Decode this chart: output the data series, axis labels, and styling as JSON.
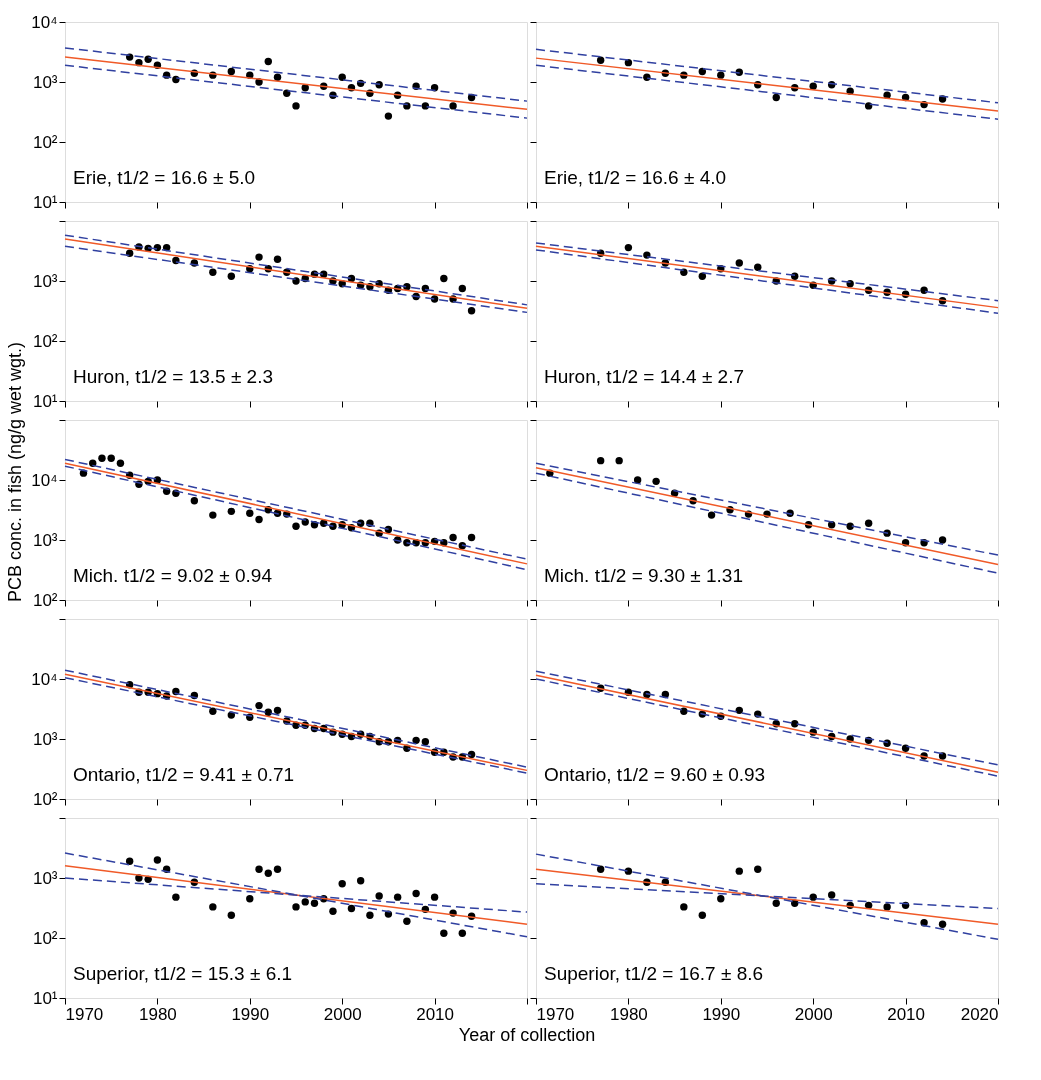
{
  "chart_data": [
    {
      "type": "scatter",
      "log": "y",
      "grid": false,
      "tick_labels": "y",
      "xlim": [
        1970,
        2020
      ],
      "ylim": [
        10,
        10000
      ],
      "xticks": [
        1970,
        1980,
        1990,
        2000,
        2010,
        2020
      ],
      "yticks": [
        {
          "value": 10,
          "label": "10¹"
        },
        {
          "value": 100,
          "label": "10²"
        },
        {
          "value": 1000,
          "label": "10³"
        },
        {
          "value": 10000,
          "label": "10⁴"
        }
      ],
      "annotations": [
        "Erie, t1/2 = 16.6 ± 5.0"
      ],
      "series": [
        {
          "type": "scatter",
          "marker": "circle",
          "color": "#000000",
          "x": [
            1977,
            1978,
            1979,
            1980,
            1981,
            1982,
            1984,
            1986,
            1988,
            1990,
            1991,
            1992,
            1993,
            1994,
            1995,
            1996,
            1998,
            1999,
            2000,
            2001,
            2002,
            2003,
            2004,
            2005,
            2006,
            2007,
            2008,
            2009,
            2010,
            2012,
            2014
          ],
          "values": [
            2600,
            2100,
            2400,
            1900,
            1300,
            1100,
            1400,
            1300,
            1500,
            1300,
            1000,
            2200,
            1200,
            650,
            400,
            800,
            850,
            600,
            1200,
            800,
            950,
            650,
            900,
            270,
            600,
            400,
            850,
            400,
            800,
            400,
            550
          ]
        },
        {
          "type": "line",
          "color": "#f05a28",
          "line_style": "solid",
          "x": [
            1970,
            2020
          ],
          "values": [
            2600,
            350
          ]
        },
        {
          "type": "line",
          "color": "#3040a0",
          "line_style": "dashed",
          "x": [
            1970,
            2020
          ],
          "values": [
            3700,
            480
          ]
        },
        {
          "type": "line",
          "color": "#3040a0",
          "line_style": "dashed",
          "x": [
            1970,
            2020
          ],
          "values": [
            1900,
            250
          ]
        }
      ]
    },
    {
      "type": "scatter",
      "log": "y",
      "grid": false,
      "tick_labels": false,
      "xlim": [
        1970,
        2020
      ],
      "ylim": [
        10,
        10000
      ],
      "xticks": [
        1970,
        1980,
        1990,
        2000,
        2010,
        2020
      ],
      "yticks": [
        10,
        100,
        1000,
        10000
      ],
      "annotations": [
        "Erie, t1/2 = 16.6 ± 4.0"
      ],
      "series": [
        {
          "type": "scatter",
          "marker": "circle",
          "color": "#000000",
          "x": [
            1977,
            1980,
            1982,
            1984,
            1986,
            1988,
            1990,
            1992,
            1994,
            1996,
            1998,
            2000,
            2002,
            2004,
            2006,
            2008,
            2010,
            2012,
            2014
          ],
          "values": [
            2300,
            2100,
            1200,
            1400,
            1300,
            1500,
            1300,
            1450,
            900,
            550,
            800,
            850,
            900,
            700,
            400,
            600,
            550,
            420,
            520
          ]
        },
        {
          "type": "line",
          "color": "#f05a28",
          "line_style": "solid",
          "x": [
            1970,
            2020
          ],
          "values": [
            2500,
            330
          ]
        },
        {
          "type": "line",
          "color": "#3040a0",
          "line_style": "dashed",
          "x": [
            1970,
            2020
          ],
          "values": [
            3500,
            450
          ]
        },
        {
          "type": "line",
          "color": "#3040a0",
          "line_style": "dashed",
          "x": [
            1970,
            2020
          ],
          "values": [
            1900,
            240
          ]
        }
      ]
    },
    {
      "type": "scatter",
      "log": "y",
      "grid": false,
      "tick_labels": "y",
      "xlim": [
        1970,
        2020
      ],
      "ylim": [
        10,
        10000
      ],
      "xticks": [
        1970,
        1980,
        1990,
        2000,
        2010,
        2020
      ],
      "yticks": [
        {
          "value": 10,
          "label": "10¹"
        },
        {
          "value": 100,
          "label": "10²"
        },
        {
          "value": 1000,
          "label": "10³"
        },
        {
          "value": 10000,
          "label": null
        }
      ],
      "annotations": [
        "Huron, t1/2 = 13.5 ± 2.3"
      ],
      "series": [
        {
          "type": "scatter",
          "marker": "circle",
          "color": "#000000",
          "x": [
            1977,
            1978,
            1979,
            1980,
            1981,
            1982,
            1984,
            1986,
            1988,
            1990,
            1991,
            1992,
            1993,
            1994,
            1995,
            1996,
            1997,
            1998,
            1999,
            2000,
            2001,
            2002,
            2003,
            2004,
            2005,
            2006,
            2007,
            2008,
            2009,
            2010,
            2011,
            2012,
            2013,
            2014
          ],
          "values": [
            2900,
            3700,
            3500,
            3600,
            3600,
            2200,
            2000,
            1400,
            1200,
            1600,
            2500,
            1600,
            2300,
            1400,
            1000,
            1100,
            1300,
            1300,
            1000,
            900,
            1100,
            850,
            800,
            900,
            700,
            750,
            800,
            550,
            750,
            500,
            1100,
            500,
            750,
            320
          ]
        },
        {
          "type": "line",
          "color": "#f05a28",
          "line_style": "solid",
          "x": [
            1970,
            2020
          ],
          "values": [
            5000,
            350
          ]
        },
        {
          "type": "line",
          "color": "#3040a0",
          "line_style": "dashed",
          "x": [
            1970,
            2020
          ],
          "values": [
            5800,
            400
          ]
        },
        {
          "type": "line",
          "color": "#3040a0",
          "line_style": "dashed",
          "x": [
            1970,
            2020
          ],
          "values": [
            3800,
            300
          ]
        }
      ]
    },
    {
      "type": "scatter",
      "log": "y",
      "grid": false,
      "tick_labels": false,
      "xlim": [
        1970,
        2020
      ],
      "ylim": [
        10,
        10000
      ],
      "xticks": [
        1970,
        1980,
        1990,
        2000,
        2010,
        2020
      ],
      "yticks": [
        10,
        100,
        1000,
        10000
      ],
      "annotations": [
        "Huron, t1/2 = 14.4 ± 2.7"
      ],
      "series": [
        {
          "type": "scatter",
          "marker": "circle",
          "color": "#000000",
          "x": [
            1977,
            1980,
            1982,
            1984,
            1986,
            1988,
            1990,
            1992,
            1994,
            1996,
            1998,
            2000,
            2002,
            2004,
            2006,
            2008,
            2010,
            2012,
            2014
          ],
          "values": [
            2900,
            3600,
            2700,
            2000,
            1400,
            1200,
            1600,
            2000,
            1700,
            1000,
            1200,
            850,
            1000,
            900,
            700,
            650,
            600,
            700,
            470
          ]
        },
        {
          "type": "line",
          "color": "#f05a28",
          "line_style": "solid",
          "x": [
            1970,
            2020
          ],
          "values": [
            3800,
            360
          ]
        },
        {
          "type": "line",
          "color": "#3040a0",
          "line_style": "dashed",
          "x": [
            1970,
            2020
          ],
          "values": [
            4300,
            470
          ]
        },
        {
          "type": "line",
          "color": "#3040a0",
          "line_style": "dashed",
          "x": [
            1970,
            2020
          ],
          "values": [
            3300,
            290
          ]
        }
      ]
    },
    {
      "type": "scatter",
      "log": "y",
      "grid": false,
      "tick_labels": "y",
      "ylabel": "PCB conc. in fish (ng/g wet wgt.)",
      "xlim": [
        1970,
        2020
      ],
      "ylim": [
        100,
        100000
      ],
      "xticks": [
        1970,
        1980,
        1990,
        2000,
        2010,
        2020
      ],
      "yticks": [
        {
          "value": 100,
          "label": "10²"
        },
        {
          "value": 1000,
          "label": "10³"
        },
        {
          "value": 10000,
          "label": "10⁴"
        },
        {
          "value": 100000,
          "label": null
        }
      ],
      "annotations": [
        "Mich. t1/2 = 9.02 ± 0.94"
      ],
      "series": [
        {
          "type": "scatter",
          "marker": "circle",
          "color": "#000000",
          "x": [
            1972,
            1973,
            1974,
            1975,
            1976,
            1977,
            1978,
            1979,
            1980,
            1981,
            1982,
            1984,
            1986,
            1988,
            1990,
            1991,
            1992,
            1993,
            1994,
            1995,
            1996,
            1997,
            1998,
            1999,
            2000,
            2001,
            2002,
            2003,
            2004,
            2005,
            2006,
            2007,
            2008,
            2009,
            2010,
            2011,
            2012,
            2013,
            2014
          ],
          "values": [
            13000,
            19000,
            23000,
            23000,
            19000,
            12000,
            8500,
            9500,
            10000,
            6500,
            6000,
            4500,
            2600,
            3000,
            2800,
            2200,
            3200,
            2800,
            2700,
            1700,
            2000,
            1800,
            1900,
            1700,
            1800,
            1600,
            1900,
            1900,
            1300,
            1500,
            1000,
            900,
            900,
            900,
            950,
            900,
            1100,
            800,
            1100
          ]
        },
        {
          "type": "line",
          "color": "#f05a28",
          "line_style": "solid",
          "x": [
            1970,
            2020
          ],
          "values": [
            19000,
            400
          ]
        },
        {
          "type": "line",
          "color": "#3040a0",
          "line_style": "dashed",
          "x": [
            1970,
            2020
          ],
          "values": [
            22000,
            480
          ]
        },
        {
          "type": "line",
          "color": "#3040a0",
          "line_style": "dashed",
          "x": [
            1970,
            2020
          ],
          "values": [
            17000,
            320
          ]
        }
      ]
    },
    {
      "type": "scatter",
      "log": "y",
      "grid": false,
      "tick_labels": false,
      "xlim": [
        1970,
        2020
      ],
      "ylim": [
        100,
        100000
      ],
      "xticks": [
        1970,
        1980,
        1990,
        2000,
        2010,
        2020
      ],
      "yticks": [
        100,
        1000,
        10000,
        100000
      ],
      "annotations": [
        "Mich. t1/2 = 9.30 ± 1.31"
      ],
      "series": [
        {
          "type": "scatter",
          "marker": "circle",
          "color": "#000000",
          "x": [
            1971.5,
            1977,
            1979,
            1981,
            1983,
            1985,
            1987,
            1989,
            1991,
            1993,
            1995,
            1997.5,
            1999.5,
            2002,
            2004,
            2006,
            2008,
            2010,
            2012,
            2014
          ],
          "values": [
            13000,
            21000,
            21000,
            10000,
            9500,
            6000,
            4500,
            2600,
            3200,
            2700,
            2700,
            2800,
            1800,
            1800,
            1700,
            1900,
            1300,
            900,
            900,
            1000
          ]
        },
        {
          "type": "line",
          "color": "#f05a28",
          "line_style": "solid",
          "x": [
            1970,
            2020
          ],
          "values": [
            16000,
            390
          ]
        },
        {
          "type": "line",
          "color": "#3040a0",
          "line_style": "dashed",
          "x": [
            1970,
            2020
          ],
          "values": [
            19000,
            560
          ]
        },
        {
          "type": "line",
          "color": "#3040a0",
          "line_style": "dashed",
          "x": [
            1970,
            2020
          ],
          "values": [
            13000,
            280
          ]
        }
      ]
    },
    {
      "type": "scatter",
      "log": "y",
      "grid": false,
      "tick_labels": "y",
      "xlim": [
        1970,
        2020
      ],
      "ylim": [
        100,
        100000
      ],
      "xticks": [
        1970,
        1980,
        1990,
        2000,
        2010,
        2020
      ],
      "yticks": [
        {
          "value": 100,
          "label": "10²"
        },
        {
          "value": 1000,
          "label": "10³"
        },
        {
          "value": 10000,
          "label": "10⁴"
        },
        {
          "value": 100000,
          "label": null
        }
      ],
      "annotations": [
        "Ontario, t1/2 = 9.41 ± 0.71"
      ],
      "series": [
        {
          "type": "scatter",
          "marker": "circle",
          "color": "#000000",
          "x": [
            1977,
            1978,
            1979,
            1980,
            1981,
            1982,
            1984,
            1986,
            1988,
            1990,
            1991,
            1992,
            1993,
            1994,
            1995,
            1996,
            1997,
            1998,
            1999,
            2000,
            2001,
            2002,
            2003,
            2004,
            2005,
            2006,
            2007,
            2008,
            2009,
            2010,
            2011,
            2012,
            2013,
            2014
          ],
          "values": [
            8000,
            6000,
            6000,
            5700,
            5200,
            6200,
            5300,
            2900,
            2500,
            2300,
            3600,
            2800,
            3000,
            2000,
            1700,
            1700,
            1500,
            1500,
            1300,
            1200,
            1100,
            1200,
            1100,
            900,
            900,
            950,
            700,
            950,
            900,
            600,
            600,
            500,
            500,
            550
          ]
        },
        {
          "type": "line",
          "color": "#f05a28",
          "line_style": "solid",
          "x": [
            1970,
            2020
          ],
          "values": [
            12000,
            300
          ]
        },
        {
          "type": "line",
          "color": "#3040a0",
          "line_style": "dashed",
          "x": [
            1970,
            2020
          ],
          "values": [
            14000,
            340
          ]
        },
        {
          "type": "line",
          "color": "#3040a0",
          "line_style": "dashed",
          "x": [
            1970,
            2020
          ],
          "values": [
            10500,
            270
          ]
        }
      ]
    },
    {
      "type": "scatter",
      "log": "y",
      "grid": false,
      "tick_labels": false,
      "xlim": [
        1970,
        2020
      ],
      "ylim": [
        100,
        100000
      ],
      "xticks": [
        1970,
        1980,
        1990,
        2000,
        2010,
        2020
      ],
      "yticks": [
        100,
        1000,
        10000,
        100000
      ],
      "annotations": [
        "Ontario, t1/2 = 9.60 ± 0.93"
      ],
      "series": [
        {
          "type": "scatter",
          "marker": "circle",
          "color": "#000000",
          "x": [
            1977,
            1980,
            1982,
            1984,
            1986,
            1988,
            1990,
            1992,
            1994,
            1996,
            1998,
            2000,
            2002,
            2004,
            2006,
            2008,
            2010,
            2012,
            2014
          ],
          "values": [
            7000,
            6000,
            5500,
            5500,
            2900,
            2600,
            2400,
            3000,
            2600,
            1800,
            1800,
            1300,
            1100,
            1000,
            950,
            850,
            700,
            520,
            520
          ]
        },
        {
          "type": "line",
          "color": "#f05a28",
          "line_style": "solid",
          "x": [
            1970,
            2020
          ],
          "values": [
            11500,
            280
          ]
        },
        {
          "type": "line",
          "color": "#3040a0",
          "line_style": "dashed",
          "x": [
            1970,
            2020
          ],
          "values": [
            13500,
            370
          ]
        },
        {
          "type": "line",
          "color": "#3040a0",
          "line_style": "dashed",
          "x": [
            1970,
            2020
          ],
          "values": [
            10000,
            240
          ]
        }
      ]
    },
    {
      "type": "scatter",
      "log": "y",
      "grid": false,
      "xlabel": "Year of collection",
      "xlim": [
        1970,
        2020
      ],
      "ylim": [
        10,
        10000
      ],
      "xticks": [
        1970,
        1980,
        1990,
        2000,
        2010,
        {
          "value": 2020,
          "label": null
        }
      ],
      "yticks": [
        {
          "value": 10,
          "label": "10¹"
        },
        {
          "value": 100,
          "label": "10²"
        },
        {
          "value": 1000,
          "label": "10³"
        },
        {
          "value": 10000,
          "label": null
        }
      ],
      "annotations": [
        "Superior, t1/2 = 15.3 ± 6.1"
      ],
      "series": [
        {
          "type": "scatter",
          "marker": "circle",
          "color": "#000000",
          "x": [
            1977,
            1978,
            1979,
            1980,
            1981,
            1982,
            1984,
            1986,
            1988,
            1990,
            1991,
            1992,
            1993,
            1995,
            1996,
            1997,
            1998,
            1999,
            2000,
            2001,
            2002,
            2003,
            2004,
            2005,
            2006,
            2007,
            2008,
            2009,
            2010,
            2011,
            2012,
            2013,
            2014
          ],
          "values": [
            1900,
            1000,
            950,
            2000,
            1400,
            480,
            850,
            330,
            240,
            450,
            1400,
            1200,
            1400,
            330,
            400,
            380,
            450,
            280,
            800,
            310,
            900,
            240,
            500,
            250,
            480,
            190,
            550,
            300,
            480,
            120,
            260,
            120,
            230
          ]
        },
        {
          "type": "line",
          "color": "#f05a28",
          "line_style": "solid",
          "x": [
            1970,
            2020
          ],
          "values": [
            1600,
            170
          ]
        },
        {
          "type": "line",
          "color": "#3040a0",
          "line_style": "dashed",
          "x": [
            1970,
            2020
          ],
          "values": [
            2600,
            105
          ]
        },
        {
          "type": "line",
          "color": "#3040a0",
          "line_style": "dashed",
          "x": [
            1970,
            2020
          ],
          "values": [
            1000,
            270
          ]
        }
      ]
    },
    {
      "type": "scatter",
      "log": "y",
      "grid": false,
      "tick_labels": "x",
      "xlim": [
        1970,
        2020
      ],
      "ylim": [
        10,
        10000
      ],
      "xticks": [
        1970,
        1980,
        1990,
        2000,
        2010,
        2020
      ],
      "yticks": [
        10,
        100,
        1000,
        10000
      ],
      "annotations": [
        "Superior, t1/2 = 16.7 ± 8.6"
      ],
      "series": [
        {
          "type": "scatter",
          "marker": "circle",
          "color": "#000000",
          "x": [
            1977,
            1980,
            1982,
            1984,
            1986,
            1988,
            1990,
            1992,
            1994,
            1996,
            1998,
            2000,
            2002,
            2004,
            2006,
            2008,
            2010,
            2012,
            2014
          ],
          "values": [
            1400,
            1300,
            850,
            850,
            330,
            240,
            450,
            1300,
            1400,
            380,
            380,
            480,
            520,
            350,
            350,
            330,
            350,
            180,
            170
          ]
        },
        {
          "type": "line",
          "color": "#f05a28",
          "line_style": "solid",
          "x": [
            1970,
            2020
          ],
          "values": [
            1400,
            170
          ]
        },
        {
          "type": "line",
          "color": "#3040a0",
          "line_style": "dashed",
          "x": [
            1970,
            2020
          ],
          "values": [
            2500,
            95
          ]
        },
        {
          "type": "line",
          "color": "#3040a0",
          "line_style": "dashed",
          "x": [
            1970,
            2020
          ],
          "values": [
            800,
            310
          ]
        }
      ]
    }
  ]
}
